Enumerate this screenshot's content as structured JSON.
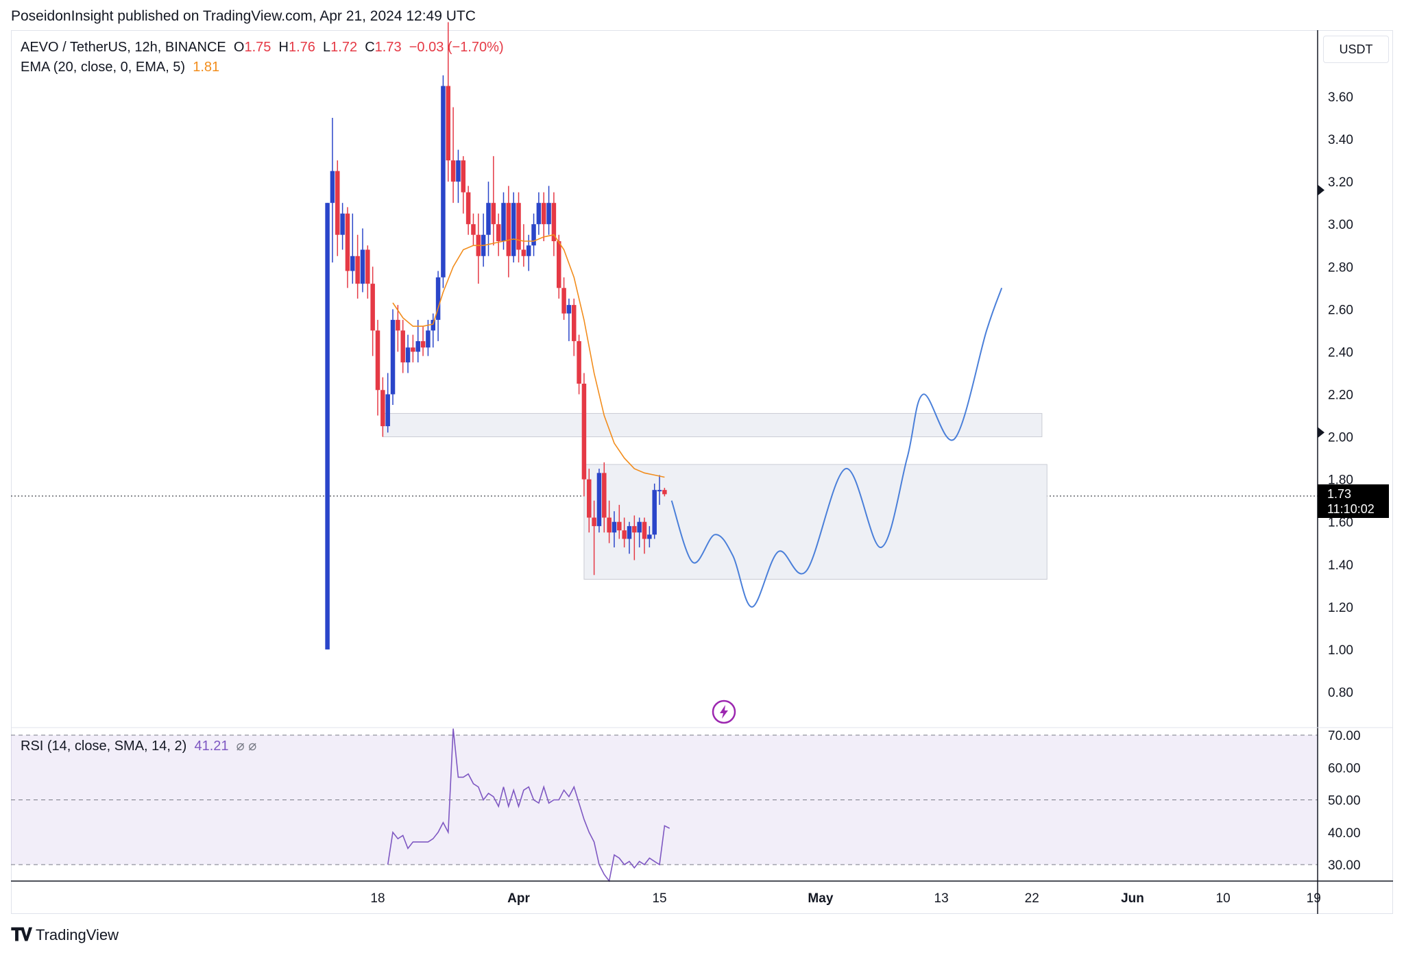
{
  "header": {
    "published": "PoseidonInsight published on TradingView.com, Apr 21, 2024 12:49 UTC"
  },
  "legend": {
    "symbol": "AEVO / TetherUS, 12h, BINANCE",
    "o_label": "O",
    "o_value": "1.75",
    "h_label": "H",
    "h_value": "1.76",
    "l_label": "L",
    "l_value": "1.72",
    "c_label": "C",
    "c_value": "1.73",
    "change": "−0.03 (−1.70%)",
    "ema_label": "EMA (20, close, 0, EMA, 5)",
    "ema_value": "1.81",
    "rsi_label": "RSI (14, close, SMA, 14, 2)",
    "rsi_value": "41.21",
    "rsi_extra": "⌀  ⌀"
  },
  "price_axis": {
    "unit": "USDT",
    "current_price": "1.73",
    "countdown": "11:10:02"
  },
  "branding": {
    "logo_icon": "tradingview-logo-icon",
    "name": "TradingView"
  },
  "colors": {
    "bull": "#2a45c9",
    "bear": "#e53945",
    "ema": "#f28c1b",
    "projection": "#4a7fd9",
    "rsi": "#7e57c2",
    "zone": "#eef0f5"
  },
  "chart_data": [
    {
      "type": "candlestick",
      "title": "AEVO / TetherUS, 12h, BINANCE",
      "ylim": [
        0.7,
        3.8
      ],
      "y_ticks": [
        "3.60",
        "3.40",
        "3.20",
        "3.00",
        "2.80",
        "2.60",
        "2.40",
        "2.20",
        "2.00",
        "1.80",
        "1.60",
        "1.40",
        "1.20",
        "1.00",
        "0.80"
      ],
      "x_ticks": [
        {
          "label": "18",
          "day": 18
        },
        {
          "label": "Apr",
          "day": 32
        },
        {
          "label": "15",
          "day": 46
        },
        {
          "label": "May",
          "day": 62
        },
        {
          "label": "13",
          "day": 74
        },
        {
          "label": "22",
          "day": 83
        },
        {
          "label": "Jun",
          "day": 93
        },
        {
          "label": "10",
          "day": 102
        },
        {
          "label": "19",
          "day": 111
        }
      ],
      "x_unit_note": "day = days counted from Mar 1, 2024 (12h candles at half-day steps)",
      "ohlc": [
        {
          "t": 13.0,
          "o": 1.0,
          "h": 3.1,
          "l": 1.0,
          "c": 3.1
        },
        {
          "t": 13.5,
          "o": 3.1,
          "h": 3.5,
          "l": 2.82,
          "c": 3.25
        },
        {
          "t": 14.0,
          "o": 3.25,
          "h": 3.3,
          "l": 2.85,
          "c": 2.95
        },
        {
          "t": 14.5,
          "o": 2.95,
          "h": 3.1,
          "l": 2.88,
          "c": 3.05
        },
        {
          "t": 15.0,
          "o": 3.05,
          "h": 3.08,
          "l": 2.7,
          "c": 2.78
        },
        {
          "t": 15.5,
          "o": 2.78,
          "h": 3.05,
          "l": 2.72,
          "c": 2.85
        },
        {
          "t": 16.0,
          "o": 2.85,
          "h": 2.95,
          "l": 2.65,
          "c": 2.72
        },
        {
          "t": 16.5,
          "o": 2.72,
          "h": 2.98,
          "l": 2.68,
          "c": 2.88
        },
        {
          "t": 17.0,
          "o": 2.88,
          "h": 2.9,
          "l": 2.65,
          "c": 2.72
        },
        {
          "t": 17.5,
          "o": 2.72,
          "h": 2.8,
          "l": 2.38,
          "c": 2.5
        },
        {
          "t": 18.0,
          "o": 2.5,
          "h": 2.55,
          "l": 2.1,
          "c": 2.22
        },
        {
          "t": 18.5,
          "o": 2.22,
          "h": 2.28,
          "l": 2.0,
          "c": 2.05
        },
        {
          "t": 19.0,
          "o": 2.05,
          "h": 2.3,
          "l": 2.02,
          "c": 2.2
        },
        {
          "t": 19.5,
          "o": 2.2,
          "h": 2.6,
          "l": 2.15,
          "c": 2.55
        },
        {
          "t": 20.0,
          "o": 2.55,
          "h": 2.62,
          "l": 2.4,
          "c": 2.5
        },
        {
          "t": 20.5,
          "o": 2.5,
          "h": 2.55,
          "l": 2.3,
          "c": 2.35
        },
        {
          "t": 21.0,
          "o": 2.35,
          "h": 2.48,
          "l": 2.3,
          "c": 2.42
        },
        {
          "t": 21.5,
          "o": 2.42,
          "h": 2.48,
          "l": 2.35,
          "c": 2.4
        },
        {
          "t": 22.0,
          "o": 2.4,
          "h": 2.55,
          "l": 2.35,
          "c": 2.45
        },
        {
          "t": 22.5,
          "o": 2.45,
          "h": 2.52,
          "l": 2.38,
          "c": 2.42
        },
        {
          "t": 23.0,
          "o": 2.42,
          "h": 2.55,
          "l": 2.38,
          "c": 2.5
        },
        {
          "t": 23.5,
          "o": 2.5,
          "h": 2.58,
          "l": 2.42,
          "c": 2.55
        },
        {
          "t": 24.0,
          "o": 2.55,
          "h": 2.78,
          "l": 2.45,
          "c": 2.75
        },
        {
          "t": 24.5,
          "o": 2.75,
          "h": 3.7,
          "l": 2.7,
          "c": 3.65
        },
        {
          "t": 25.0,
          "o": 3.65,
          "h": 3.95,
          "l": 3.2,
          "c": 3.3
        },
        {
          "t": 25.5,
          "o": 3.3,
          "h": 3.55,
          "l": 3.1,
          "c": 3.2
        },
        {
          "t": 26.0,
          "o": 3.2,
          "h": 3.35,
          "l": 3.1,
          "c": 3.3
        },
        {
          "t": 26.5,
          "o": 3.3,
          "h": 3.32,
          "l": 3.05,
          "c": 3.15
        },
        {
          "t": 27.0,
          "o": 3.15,
          "h": 3.18,
          "l": 2.95,
          "c": 3.0
        },
        {
          "t": 27.5,
          "o": 3.0,
          "h": 3.05,
          "l": 2.9,
          "c": 2.95
        },
        {
          "t": 28.0,
          "o": 2.95,
          "h": 3.05,
          "l": 2.72,
          "c": 2.85
        },
        {
          "t": 28.5,
          "o": 2.85,
          "h": 3.05,
          "l": 2.8,
          "c": 2.95
        },
        {
          "t": 29.0,
          "o": 2.95,
          "h": 3.2,
          "l": 2.85,
          "c": 3.1
        },
        {
          "t": 29.5,
          "o": 3.1,
          "h": 3.32,
          "l": 2.9,
          "c": 3.0
        },
        {
          "t": 30.0,
          "o": 3.0,
          "h": 3.05,
          "l": 2.85,
          "c": 2.92
        },
        {
          "t": 30.5,
          "o": 2.92,
          "h": 3.15,
          "l": 2.88,
          "c": 3.1
        },
        {
          "t": 31.0,
          "o": 3.1,
          "h": 3.18,
          "l": 2.75,
          "c": 2.85
        },
        {
          "t": 31.5,
          "o": 2.85,
          "h": 3.15,
          "l": 2.82,
          "c": 3.1
        },
        {
          "t": 32.0,
          "o": 3.1,
          "h": 3.15,
          "l": 2.82,
          "c": 2.88
        },
        {
          "t": 32.5,
          "o": 2.88,
          "h": 3.0,
          "l": 2.8,
          "c": 2.85
        },
        {
          "t": 33.0,
          "o": 2.85,
          "h": 2.95,
          "l": 2.78,
          "c": 2.9
        },
        {
          "t": 33.5,
          "o": 2.9,
          "h": 3.05,
          "l": 2.85,
          "c": 3.0
        },
        {
          "t": 34.0,
          "o": 3.0,
          "h": 3.15,
          "l": 2.95,
          "c": 3.1
        },
        {
          "t": 34.5,
          "o": 3.1,
          "h": 3.15,
          "l": 2.92,
          "c": 3.0
        },
        {
          "t": 35.0,
          "o": 3.0,
          "h": 3.18,
          "l": 2.95,
          "c": 3.1
        },
        {
          "t": 35.5,
          "o": 3.1,
          "h": 3.15,
          "l": 2.85,
          "c": 2.92
        },
        {
          "t": 36.0,
          "o": 2.92,
          "h": 2.95,
          "l": 2.65,
          "c": 2.7
        },
        {
          "t": 36.5,
          "o": 2.7,
          "h": 2.75,
          "l": 2.55,
          "c": 2.58
        },
        {
          "t": 37.0,
          "o": 2.58,
          "h": 2.65,
          "l": 2.45,
          "c": 2.62
        },
        {
          "t": 37.5,
          "o": 2.62,
          "h": 2.65,
          "l": 2.38,
          "c": 2.45
        },
        {
          "t": 38.0,
          "o": 2.45,
          "h": 2.48,
          "l": 2.2,
          "c": 2.25
        },
        {
          "t": 38.5,
          "o": 2.25,
          "h": 2.3,
          "l": 1.72,
          "c": 1.8
        },
        {
          "t": 39.0,
          "o": 1.8,
          "h": 1.85,
          "l": 1.55,
          "c": 1.62
        },
        {
          "t": 39.5,
          "o": 1.62,
          "h": 1.7,
          "l": 1.35,
          "c": 1.58
        },
        {
          "t": 40.0,
          "o": 1.58,
          "h": 1.85,
          "l": 1.55,
          "c": 1.83
        },
        {
          "t": 40.5,
          "o": 1.83,
          "h": 1.88,
          "l": 1.55,
          "c": 1.62
        },
        {
          "t": 41.0,
          "o": 1.62,
          "h": 1.7,
          "l": 1.5,
          "c": 1.55
        },
        {
          "t": 41.5,
          "o": 1.55,
          "h": 1.65,
          "l": 1.48,
          "c": 1.6
        },
        {
          "t": 42.0,
          "o": 1.6,
          "h": 1.68,
          "l": 1.52,
          "c": 1.56
        },
        {
          "t": 42.5,
          "o": 1.56,
          "h": 1.62,
          "l": 1.48,
          "c": 1.52
        },
        {
          "t": 43.0,
          "o": 1.52,
          "h": 1.6,
          "l": 1.45,
          "c": 1.58
        },
        {
          "t": 43.5,
          "o": 1.58,
          "h": 1.63,
          "l": 1.42,
          "c": 1.55
        },
        {
          "t": 44.0,
          "o": 1.55,
          "h": 1.62,
          "l": 1.48,
          "c": 1.6
        },
        {
          "t": 44.5,
          "o": 1.6,
          "h": 1.62,
          "l": 1.45,
          "c": 1.52
        },
        {
          "t": 45.0,
          "o": 1.52,
          "h": 1.58,
          "l": 1.48,
          "c": 1.54
        },
        {
          "t": 45.5,
          "o": 1.54,
          "h": 1.78,
          "l": 1.52,
          "c": 1.75
        },
        {
          "t": 46.0,
          "o": 1.75,
          "h": 1.82,
          "l": 1.68,
          "c": 1.75
        },
        {
          "t": 46.5,
          "o": 1.75,
          "h": 1.76,
          "l": 1.72,
          "c": 1.73
        }
      ],
      "ema": {
        "name": "EMA (20, close, 0, EMA, 5)",
        "points": [
          [
            19.5,
            2.63
          ],
          [
            20.5,
            2.56
          ],
          [
            21.5,
            2.52
          ],
          [
            22.5,
            2.52
          ],
          [
            23.5,
            2.53
          ],
          [
            24.5,
            2.68
          ],
          [
            25.5,
            2.8
          ],
          [
            26.5,
            2.88
          ],
          [
            27.5,
            2.9
          ],
          [
            28.5,
            2.9
          ],
          [
            29.5,
            2.91
          ],
          [
            30.5,
            2.92
          ],
          [
            31.5,
            2.93
          ],
          [
            32.5,
            2.92
          ],
          [
            33.5,
            2.92
          ],
          [
            34.5,
            2.94
          ],
          [
            35.5,
            2.95
          ],
          [
            36.5,
            2.88
          ],
          [
            37.5,
            2.75
          ],
          [
            38.5,
            2.55
          ],
          [
            39.5,
            2.3
          ],
          [
            40.5,
            2.1
          ],
          [
            41.5,
            1.97
          ],
          [
            42.5,
            1.9
          ],
          [
            43.5,
            1.85
          ],
          [
            44.5,
            1.83
          ],
          [
            45.5,
            1.82
          ],
          [
            46.5,
            1.81
          ]
        ]
      },
      "zones": [
        {
          "x1": 18.5,
          "x2": 84.0,
          "y1": 2.0,
          "y2": 2.11
        },
        {
          "x1": 38.5,
          "x2": 84.5,
          "y1": 1.33,
          "y2": 1.87
        }
      ],
      "projection": {
        "points": [
          [
            47.2,
            1.7
          ],
          [
            49.3,
            1.41
          ],
          [
            51.5,
            1.54
          ],
          [
            53.3,
            1.44
          ],
          [
            55.2,
            1.2
          ],
          [
            57.8,
            1.46
          ],
          [
            60.6,
            1.37
          ],
          [
            64.5,
            1.85
          ],
          [
            68.0,
            1.48
          ],
          [
            70.6,
            1.9
          ],
          [
            72.2,
            2.2
          ],
          [
            75.3,
            1.99
          ],
          [
            78.5,
            2.5
          ],
          [
            80.0,
            2.7
          ]
        ]
      }
    },
    {
      "type": "line",
      "title": "RSI (14, close, SMA, 14, 2)",
      "ylim": [
        25,
        72
      ],
      "y_ticks": [
        "70.00",
        "60.00",
        "50.00",
        "40.00",
        "30.00"
      ],
      "bands": [
        30,
        70
      ],
      "series": [
        {
          "name": "RSI (14, close, SMA, 14, 2)",
          "points": [
            [
              19.0,
              30
            ],
            [
              19.5,
              40
            ],
            [
              20.0,
              38
            ],
            [
              20.5,
              39
            ],
            [
              21.0,
              35
            ],
            [
              21.5,
              37
            ],
            [
              22.0,
              37
            ],
            [
              22.5,
              37
            ],
            [
              23.0,
              37
            ],
            [
              23.5,
              38
            ],
            [
              24.0,
              40
            ],
            [
              24.5,
              43
            ],
            [
              25.0,
              40
            ],
            [
              25.5,
              72
            ],
            [
              26.0,
              57
            ],
            [
              26.5,
              57
            ],
            [
              27.0,
              58
            ],
            [
              27.5,
              55
            ],
            [
              28.0,
              54
            ],
            [
              28.5,
              50
            ],
            [
              29.0,
              52
            ],
            [
              29.5,
              51
            ],
            [
              30.0,
              48
            ],
            [
              30.5,
              54
            ],
            [
              31.0,
              48
            ],
            [
              31.5,
              53
            ],
            [
              32.0,
              48
            ],
            [
              32.5,
              53
            ],
            [
              33.0,
              54
            ],
            [
              33.5,
              50
            ],
            [
              34.0,
              49
            ],
            [
              34.5,
              54
            ],
            [
              35.0,
              49
            ],
            [
              35.5,
              50
            ],
            [
              36.0,
              50
            ],
            [
              36.5,
              53
            ],
            [
              37.0,
              51
            ],
            [
              37.5,
              54
            ],
            [
              38.0,
              49
            ],
            [
              38.5,
              44
            ],
            [
              39.0,
              40
            ],
            [
              39.5,
              37
            ],
            [
              40.0,
              30
            ],
            [
              40.5,
              27
            ],
            [
              41.0,
              24
            ],
            [
              41.5,
              33
            ],
            [
              42.0,
              32
            ],
            [
              42.5,
              30
            ],
            [
              43.0,
              31
            ],
            [
              43.5,
              29
            ],
            [
              44.0,
              31
            ],
            [
              44.5,
              30
            ],
            [
              45.0,
              32
            ],
            [
              45.5,
              31
            ],
            [
              46.0,
              30
            ],
            [
              46.5,
              42
            ],
            [
              47.0,
              41.21
            ]
          ]
        }
      ]
    }
  ]
}
